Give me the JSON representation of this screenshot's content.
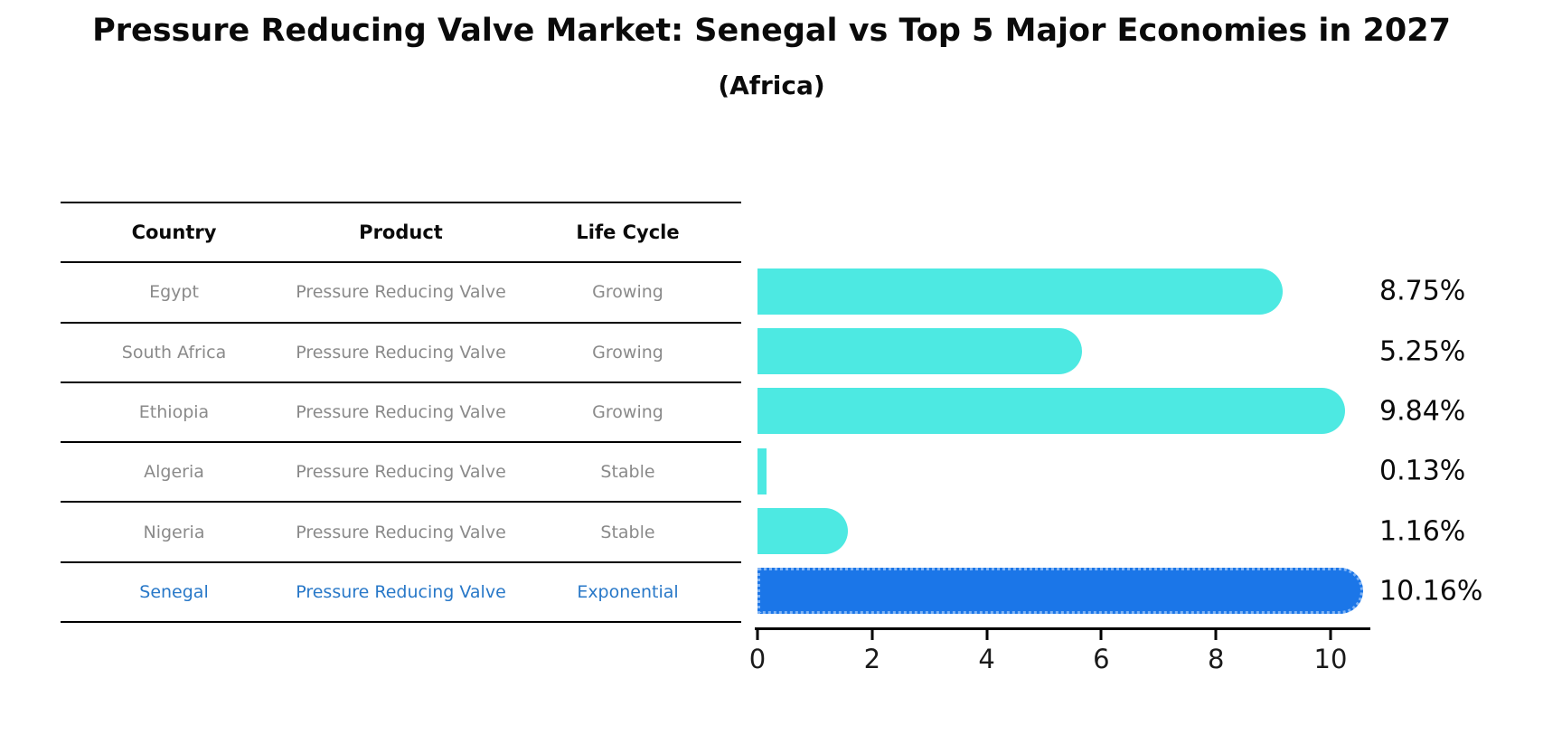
{
  "title": "Pressure Reducing Valve Market: Senegal vs Top 5 Major Economies in 2027",
  "subtitle": "(Africa)",
  "table": {
    "headers": [
      "Country",
      "Product",
      "Life Cycle"
    ],
    "rows": [
      {
        "country": "Egypt",
        "product": "Pressure Reducing Valve",
        "life_cycle": "Growing",
        "highlight": false
      },
      {
        "country": "South Africa",
        "product": "Pressure Reducing Valve",
        "life_cycle": "Growing",
        "highlight": false
      },
      {
        "country": "Ethiopia",
        "product": "Pressure Reducing Valve",
        "life_cycle": "Growing",
        "highlight": false
      },
      {
        "country": "Algeria",
        "product": "Pressure Reducing Valve",
        "life_cycle": "Stable",
        "highlight": false
      },
      {
        "country": "Nigeria",
        "product": "Pressure Reducing Valve",
        "life_cycle": "Stable",
        "highlight": false
      },
      {
        "country": "Senegal",
        "product": "Pressure Reducing Valve",
        "life_cycle": "Exponential",
        "highlight": true
      }
    ]
  },
  "chart_data": {
    "type": "bar",
    "orientation": "horizontal",
    "categories": [
      "Egypt",
      "South Africa",
      "Ethiopia",
      "Algeria",
      "Nigeria",
      "Senegal"
    ],
    "values": [
      8.75,
      5.25,
      9.84,
      0.13,
      1.16,
      10.16
    ],
    "value_labels": [
      "8.75%",
      "5.25%",
      "9.84%",
      "0.13%",
      "1.16%",
      "10.16%"
    ],
    "title": "Pressure Reducing Valve Market: Senegal vs Top 5 Major Economies in 2027 (Africa)",
    "xlabel": "",
    "ylabel": "",
    "xlim": [
      0,
      10.7
    ],
    "xticks": [
      0,
      2,
      4,
      6,
      8,
      10
    ],
    "grid": false,
    "legend": false,
    "bar_color": "#4de9e2",
    "highlight_color": "#1b76e8",
    "highlight_index": 5,
    "text_color": "#0a0a0a",
    "muted_text_color": "#8a8a8a",
    "highlight_text_color": "#2878c8"
  }
}
